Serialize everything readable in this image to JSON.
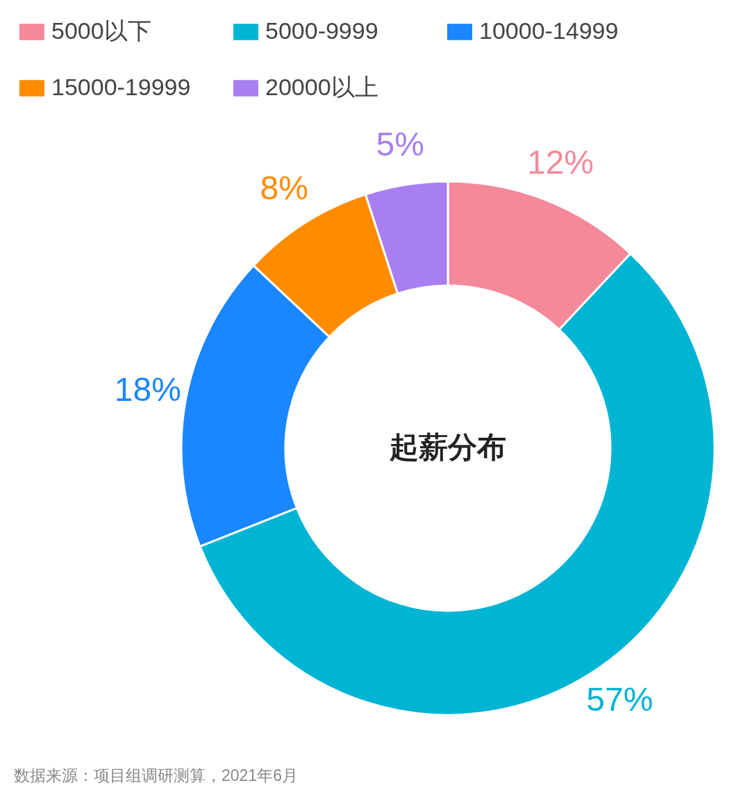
{
  "chart_data": {
    "type": "donut",
    "title": "起薪分布",
    "categories": [
      "5000以下",
      "5000-9999",
      "10000-14999",
      "15000-19999",
      "20000以上"
    ],
    "values": [
      12,
      57,
      18,
      8,
      5
    ],
    "colors": [
      "#f4899a",
      "#00b4d3",
      "#1a86ff",
      "#ff8c00",
      "#a87ff0"
    ],
    "value_labels": [
      "12%",
      "57%",
      "18%",
      "8%",
      "5%"
    ],
    "legend": "top left",
    "annotations": [
      "数据来源：项目组调研测算，2021年6月"
    ]
  }
}
